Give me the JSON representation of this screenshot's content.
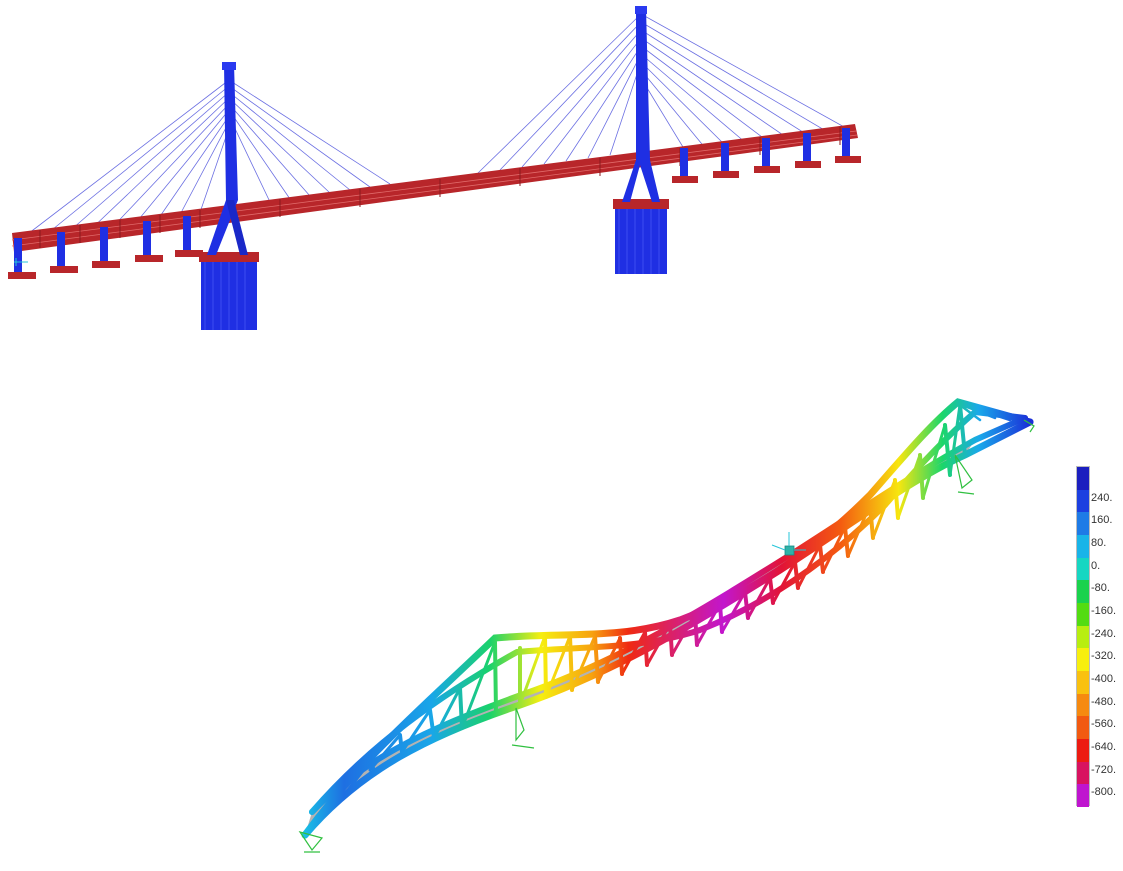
{
  "legend": {
    "ticks": [
      "240.",
      "160.",
      "80.",
      "0.",
      "-80.",
      "-160.",
      "-240.",
      "-320.",
      "-400.",
      "-480.",
      "-560.",
      "-640.",
      "-720.",
      "-800."
    ],
    "colors": [
      "#1b1fbf",
      "#1c3fe0",
      "#1e7be6",
      "#19b4e8",
      "#16d6c2",
      "#1ad24d",
      "#53dc12",
      "#b8ee10",
      "#f7ef0e",
      "#f9c10f",
      "#f68a10",
      "#f25a11",
      "#ec1b12",
      "#d81360",
      "#bf15cf"
    ]
  },
  "colors": {
    "pylon": "#1f2fe3",
    "deck": "#b8262a",
    "cable": "#3a3fd8",
    "deck_shade": "#9a9a9a"
  },
  "icons": [
    "axis-triad-icon",
    "support-fixity-icon"
  ]
}
